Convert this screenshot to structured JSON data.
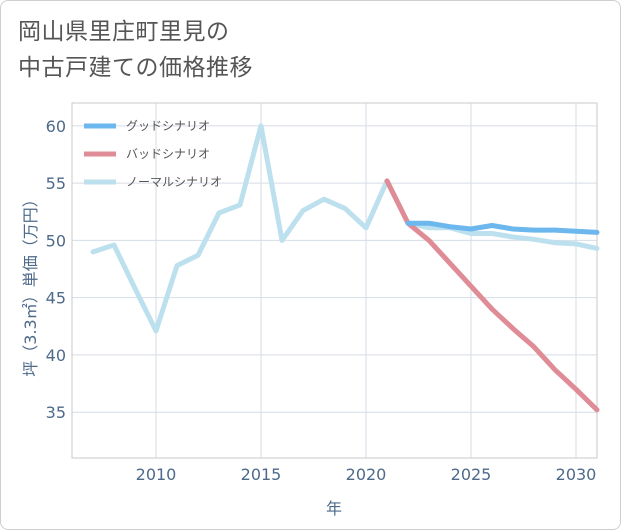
{
  "title_lines": [
    "岡山県里庄町里見の",
    "中古戸建ての価格推移"
  ],
  "chart_data": {
    "type": "line",
    "xlabel": "年",
    "ylabel": "坪（3.3㎡）単価（万円）",
    "xlim": [
      2006,
      2031
    ],
    "ylim": [
      31,
      62
    ],
    "xticks": [
      2010,
      2015,
      2020,
      2025,
      2030
    ],
    "yticks": [
      35,
      40,
      45,
      50,
      55,
      60
    ],
    "grid": true,
    "legend_position": "top-left",
    "series": [
      {
        "name": "グッドシナリオ",
        "color": "#6bb7ee",
        "x": [
          2022,
          2023,
          2024,
          2025,
          2026,
          2027,
          2028,
          2029,
          2030,
          2031
        ],
        "values": [
          51.5,
          51.5,
          51.2,
          51.0,
          51.3,
          51.0,
          50.9,
          50.9,
          50.8,
          50.7
        ]
      },
      {
        "name": "バッドシナリオ",
        "color": "#df8c96",
        "x": [
          2021,
          2022,
          2023,
          2024,
          2025,
          2026,
          2027,
          2028,
          2029,
          2030,
          2031
        ],
        "values": [
          55.2,
          51.5,
          50.0,
          48.0,
          46.0,
          44.0,
          42.3,
          40.7,
          38.7,
          37.0,
          35.2
        ]
      },
      {
        "name": "ノーマルシナリオ",
        "color": "#bde0ee",
        "x": [
          2007,
          2008,
          2009,
          2010,
          2011,
          2012,
          2013,
          2014,
          2015,
          2016,
          2017,
          2018,
          2019,
          2020,
          2021,
          2022,
          2023,
          2024,
          2025,
          2026,
          2027,
          2028,
          2029,
          2030,
          2031
        ],
        "values": [
          49.0,
          49.6,
          45.8,
          42.1,
          47.8,
          48.7,
          52.4,
          53.1,
          60.0,
          50.0,
          52.6,
          53.6,
          52.8,
          51.1,
          55.2,
          51.5,
          51.1,
          51.1,
          50.6,
          50.6,
          50.3,
          50.1,
          49.8,
          49.7,
          49.3
        ]
      }
    ]
  }
}
